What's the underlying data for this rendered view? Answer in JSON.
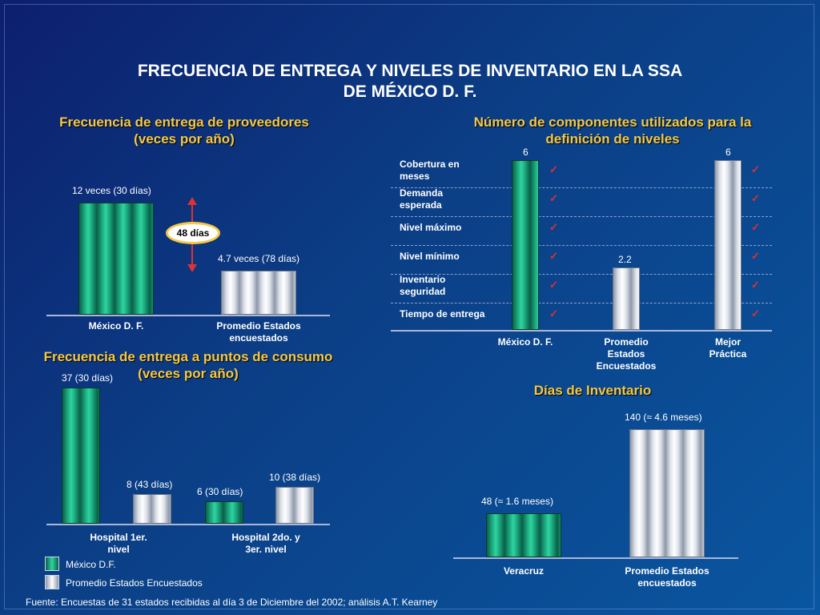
{
  "title": [
    "FRECUENCIA DE ENTREGA Y NIVELES DE INVENTARIO EN LA SSA",
    "DE MÉXICO D. F."
  ],
  "badge_48": "48 días",
  "legend": {
    "mexico": "México D.F.",
    "promedio": "Promedio Estados Encuestados"
  },
  "source": "Fuente: Encuestas de 31 estados recibidas al día 3 de Diciembre del 2002; análisis A.T. Kearney",
  "colors": {
    "background": "#0b3f86",
    "title_accent": "#f5c845",
    "green_bar": "#1aa47a",
    "silver_bar": "#dde2ea",
    "check": "#e23030"
  },
  "check_icon": "checkmark-icon",
  "chart_data": [
    {
      "type": "bar",
      "title": [
        "Frecuencia de entrega de proveedores",
        "(veces por año)"
      ],
      "categories": [
        [
          "México D. F."
        ],
        [
          "Promedio Estados",
          "encuestados"
        ]
      ],
      "values": [
        12,
        4.7
      ],
      "data_labels": [
        "12 veces   (30 días)",
        "4.7 veces  (78 días)"
      ],
      "colors": [
        "green",
        "silver"
      ],
      "ylim": [
        0,
        12
      ]
    },
    {
      "type": "bar",
      "title": [
        "Frecuencia de entrega a puntos de consumo",
        "(veces por año)"
      ],
      "categories": [
        [
          "Hospital 1er.",
          "nivel"
        ],
        [
          "Hospital 2do. y",
          "3er.  nivel"
        ]
      ],
      "series": [
        {
          "name": "México D.F.",
          "values": [
            37,
            6
          ],
          "data_labels": [
            "37 (30 días)",
            "6 (30 días)"
          ]
        },
        {
          "name": "Promedio Estados Encuestados",
          "values": [
            8,
            10
          ],
          "data_labels": [
            "8 (43 días)",
            "10 (38 días)"
          ]
        }
      ],
      "ylim": [
        0,
        37
      ]
    },
    {
      "type": "bar",
      "title": [
        "Número de componentes utilizados para la",
        "definición de niveles"
      ],
      "categories": [
        [
          "México D. F."
        ],
        [
          "Promedio",
          "Estados",
          "Encuestados"
        ],
        [
          "Mejor",
          "Práctica"
        ]
      ],
      "values": [
        6,
        2.2,
        6
      ],
      "data_labels": [
        "6",
        "2.2",
        "6"
      ],
      "colors": [
        "green",
        "silver",
        "silver"
      ],
      "row_labels": [
        [
          "Cobertura en",
          "meses"
        ],
        [
          "Demanda",
          "esperada"
        ],
        [
          "Nivel máximo"
        ],
        [
          "Nivel mínimo"
        ],
        [
          "Inventario",
          "seguridad"
        ],
        [
          "Tiempo de entrega"
        ]
      ],
      "checks": {
        "México D. F.": 6,
        "Mejor Práctica": 6
      },
      "ylim": [
        0,
        6
      ]
    },
    {
      "type": "bar",
      "title": [
        "Días de Inventario"
      ],
      "categories": [
        [
          "Veracruz"
        ],
        [
          "Promedio Estados",
          "encuestados"
        ]
      ],
      "values": [
        48,
        140
      ],
      "data_labels": [
        "48 (≈ 1.6 meses)",
        "140 (≈ 4.6 meses)"
      ],
      "colors": [
        "green",
        "silver"
      ],
      "ylim": [
        0,
        140
      ]
    }
  ]
}
